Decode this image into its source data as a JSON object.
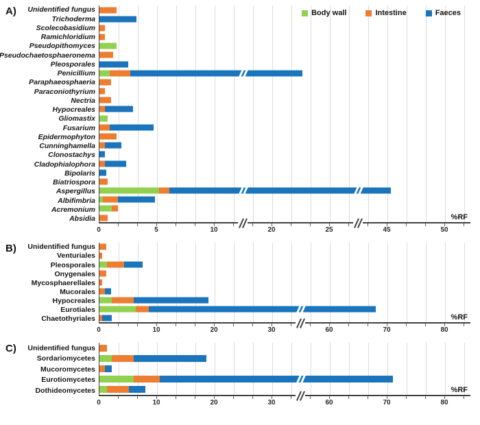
{
  "figure": {
    "axis_unit_label": "%RF",
    "legend": {
      "items": [
        {
          "label": "Body wall",
          "color": "#92d050"
        },
        {
          "label": "Intestine",
          "color": "#ed7d31"
        },
        {
          "label": "Faeces",
          "color": "#1b75bc"
        }
      ]
    }
  },
  "chart_data": [
    {
      "panel_label": "A)",
      "type": "bar",
      "orientation": "horizontal",
      "stacked": true,
      "xlabel": "%RF",
      "grid": true,
      "axis_ticks": [
        0,
        5,
        10,
        20,
        25,
        45,
        50
      ],
      "axis_breaks": [
        [
          10,
          20
        ],
        [
          25,
          45
        ]
      ],
      "axis_segments": [
        [
          0,
          5
        ],
        [
          5,
          10
        ],
        [
          10,
          20
        ],
        [
          20,
          25
        ],
        [
          25,
          45
        ],
        [
          45,
          50
        ]
      ],
      "categories": [
        "Unidentified fungus",
        "Trichoderma",
        "Scolecobasidium",
        "Ramichloridium",
        "Pseudopithomyces",
        "Pseudochaetosphaeronema",
        "Pleosporales",
        "Penicillium",
        "Paraphaeosphaeria",
        "Paraconiothyrium",
        "Nectria",
        "Hypocreales",
        "Gliomastix",
        "Fusarium",
        "Epidermophyton",
        "Cunninghamella",
        "Clonostachys",
        "Cladophialophora",
        "Bipolaris",
        "Biatriospora",
        "Aspergillus",
        "Albifimbria",
        "Acremonium",
        "Absidia"
      ],
      "series": [
        {
          "name": "Body wall",
          "color": "#92d050",
          "values": [
            0,
            0,
            0,
            0,
            1.5,
            0,
            0,
            0.9,
            0,
            0,
            0,
            0,
            0.7,
            0,
            0,
            0,
            0,
            0,
            0,
            0,
            5.2,
            0.3,
            1.1,
            0
          ]
        },
        {
          "name": "Intestine",
          "color": "#ed7d31",
          "values": [
            1.5,
            0,
            0.5,
            0.5,
            0,
            1.2,
            0,
            1.8,
            1.0,
            0.5,
            1.0,
            0.5,
            0,
            0.9,
            1.5,
            0.5,
            0,
            0.5,
            0,
            0.7,
            0.9,
            1.3,
            0.5,
            0.7
          ]
        },
        {
          "name": "Faeces",
          "color": "#1b75bc",
          "values": [
            0,
            3.2,
            0,
            0,
            0,
            0,
            2.5,
            19.9,
            0,
            0,
            0,
            2.4,
            0,
            3.8,
            0,
            1.4,
            0.5,
            1.8,
            0.6,
            0,
            39.2,
            3.2,
            0,
            0
          ]
        }
      ]
    },
    {
      "panel_label": "B)",
      "type": "bar",
      "orientation": "horizontal",
      "stacked": true,
      "xlabel": "%RF",
      "grid": true,
      "axis_ticks": [
        0,
        10,
        20,
        30,
        60,
        70,
        80
      ],
      "axis_breaks": [
        [
          30,
          60
        ]
      ],
      "axis_segments": [
        [
          0,
          10
        ],
        [
          10,
          20
        ],
        [
          20,
          30
        ],
        [
          30,
          60
        ],
        [
          60,
          70
        ],
        [
          70,
          80
        ]
      ],
      "categories": [
        "Unidentified fungus",
        "Venturiales",
        "Pleosporales",
        "Onygenales",
        "Mycosphaerellales",
        "Mucorales",
        "Hypocreales",
        "Eurotiales",
        "Chaetothyriales"
      ],
      "series": [
        {
          "name": "Body wall",
          "color": "#92d050",
          "values": [
            0,
            0,
            1.3,
            0,
            0,
            0,
            2.1,
            6.3,
            0
          ]
        },
        {
          "name": "Intestine",
          "color": "#ed7d31",
          "values": [
            1.2,
            0.5,
            3.0,
            1.2,
            0.5,
            1.0,
            3.8,
            2.3,
            0.5
          ]
        },
        {
          "name": "Faeces",
          "color": "#1b75bc",
          "values": [
            0,
            0,
            3.2,
            0,
            0,
            1.0,
            13.0,
            59.4,
            1.7
          ]
        }
      ]
    },
    {
      "panel_label": "C)",
      "type": "bar",
      "orientation": "horizontal",
      "stacked": true,
      "xlabel": "%RF",
      "grid": true,
      "axis_ticks": [
        0,
        10,
        20,
        30,
        60,
        70,
        80
      ],
      "axis_breaks": [
        [
          30,
          60
        ]
      ],
      "axis_segments": [
        [
          0,
          10
        ],
        [
          10,
          20
        ],
        [
          20,
          30
        ],
        [
          30,
          60
        ],
        [
          60,
          70
        ],
        [
          70,
          80
        ]
      ],
      "categories": [
        "Unidentified fungus",
        "Sordariomycetes",
        "Mucoromycetes",
        "Eurotiomycetes",
        "Dothideomycetes"
      ],
      "series": [
        {
          "name": "Body wall",
          "color": "#92d050",
          "values": [
            0,
            2.1,
            0,
            5.9,
            1.3
          ]
        },
        {
          "name": "Intestine",
          "color": "#ed7d31",
          "values": [
            1.3,
            3.8,
            1.0,
            4.6,
            3.8
          ]
        },
        {
          "name": "Faeces",
          "color": "#1b75bc",
          "values": [
            0,
            12.7,
            1.2,
            60.5,
            2.9
          ]
        }
      ]
    }
  ]
}
